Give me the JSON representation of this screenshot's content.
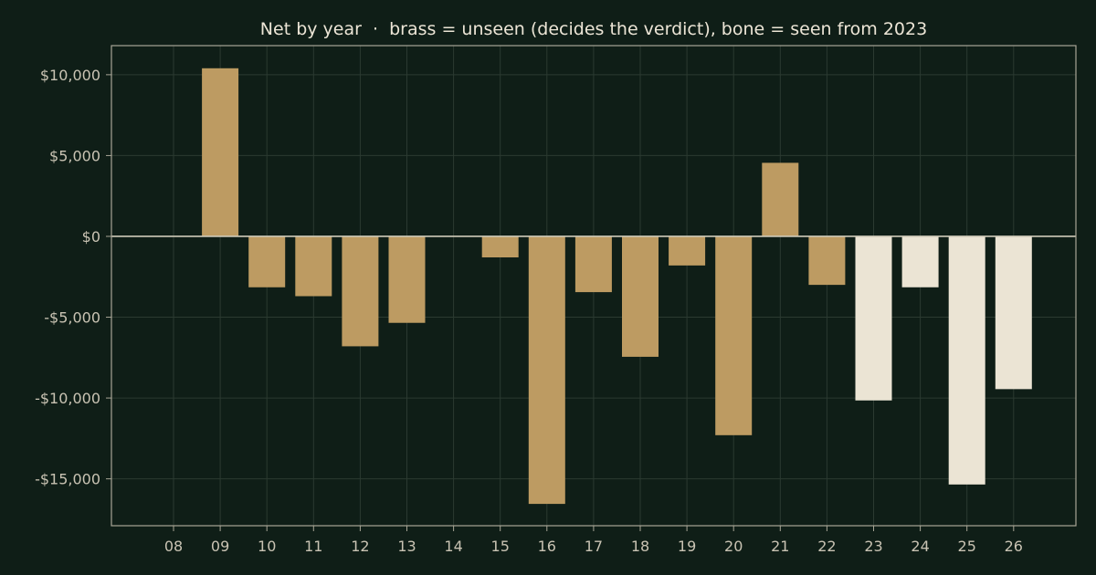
{
  "chart_data": {
    "type": "bar",
    "title": "Net by year  ·  brass = unseen (decides the verdict), bone = seen from 2023",
    "xlabel": "",
    "ylabel": "",
    "categories": [
      "08",
      "09",
      "10",
      "11",
      "12",
      "13",
      "14",
      "15",
      "16",
      "17",
      "18",
      "19",
      "20",
      "21",
      "22",
      "23",
      "24",
      "25",
      "26"
    ],
    "values": [
      0,
      10400,
      -3150,
      -3700,
      -6800,
      -5350,
      0,
      -1300,
      -16550,
      -3450,
      -7450,
      -1800,
      -12300,
      4550,
      -3000,
      -10150,
      -3150,
      -15350,
      -9450
    ],
    "seen": [
      false,
      false,
      false,
      false,
      false,
      false,
      false,
      false,
      false,
      false,
      false,
      false,
      false,
      false,
      false,
      true,
      true,
      true,
      true
    ],
    "ylim": [
      -17900,
      11800
    ],
    "yticks": [
      10000,
      5000,
      0,
      -5000,
      -10000,
      -15000
    ],
    "ytick_labels": [
      "$10,000",
      "$5,000",
      "$0",
      "-$5,000",
      "-$10,000",
      "-$15,000"
    ],
    "grid": true,
    "colors": {
      "background": "#0f1e17",
      "unseen": "#bd9b62",
      "seen": "#ebe4d4",
      "grid": "#2b3a31",
      "frame": "#a8a596",
      "text": "#c9c3b3",
      "title": "#ece5d6"
    }
  }
}
